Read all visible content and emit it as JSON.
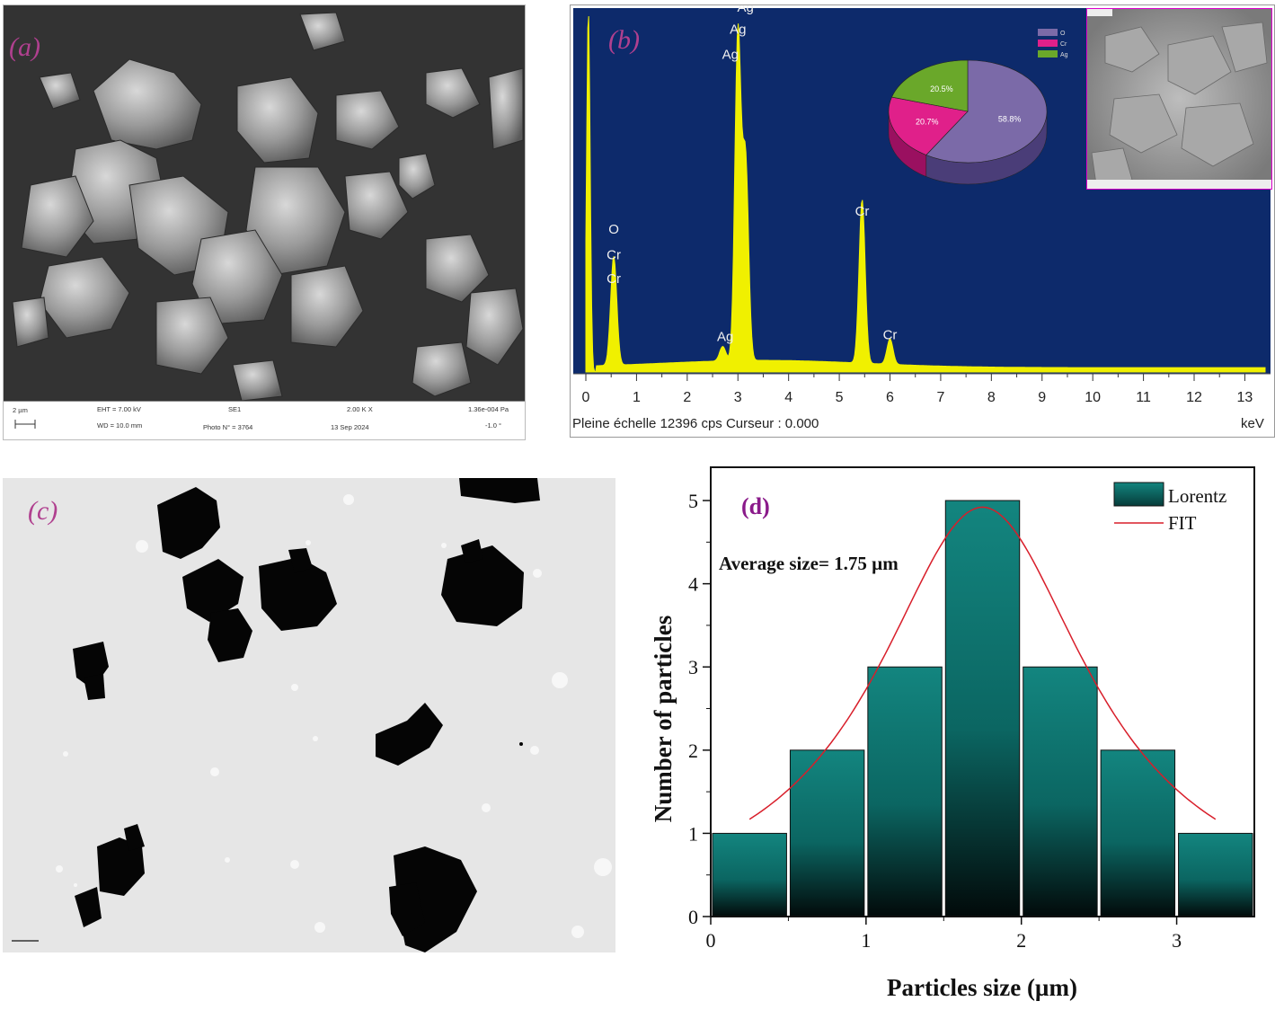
{
  "panel_a": {
    "label": "(a)",
    "info": {
      "scale": "2 µm",
      "eht": "EHT = 7.00 kV",
      "wd": "WD = 10.0 mm",
      "detector": "SE1",
      "photo": "Photo N° = 3764",
      "mag": "2.00 K X",
      "date": "13 Sep 2024",
      "pressure": "1.36e-004 Pa",
      "tilt": "-1.0 °"
    }
  },
  "panel_b": {
    "label": "(b)",
    "footer": "Pleine échelle 12396 cps  Curseur : 0.000",
    "unit": "keV",
    "x_ticks": [
      "0",
      "1",
      "2",
      "3",
      "4",
      "5",
      "6",
      "7",
      "8",
      "9",
      "10",
      "11",
      "12",
      "13"
    ],
    "peak_labels": [
      "Ag",
      "Ag",
      "Ag",
      "O",
      "Cr",
      "Cr",
      "Ag",
      "Cr",
      "Cr"
    ],
    "pie_legend": [
      "O",
      "Cr",
      "Ag"
    ],
    "pie_values": [
      "58.8%",
      "20.7%",
      "20.5%"
    ],
    "colors": {
      "background": "#0d2a6b",
      "spectrum": "#f0f000",
      "O": "#7b6aa8",
      "Cr": "#e0208a",
      "Ag": "#6aa82a"
    }
  },
  "panel_c": {
    "label": "(c)"
  },
  "panel_d": {
    "label": "(d)",
    "annotation": "Average size= 1.75 µm",
    "legend": [
      "Lorentz",
      "FIT"
    ],
    "xlabel": "Particles  size (µm)",
    "ylabel": "Number of particles",
    "colors": {
      "bar": "#0f7c78",
      "fit": "#d81e2a",
      "label": "#8a1a8a"
    }
  },
  "chart_data": [
    {
      "type": "bar",
      "title": "",
      "xlabel": "Particles  size (µm)",
      "ylabel": "Number of particles",
      "bin_edges": [
        0,
        0.5,
        1.0,
        1.5,
        2.0,
        2.5,
        3.0,
        3.5
      ],
      "values": [
        1,
        2,
        3,
        5,
        3,
        2,
        1
      ],
      "series": [
        {
          "name": "Lorentz",
          "values": [
            1,
            2,
            3,
            5,
            3,
            2,
            1
          ]
        }
      ],
      "fit": {
        "name": "FIT",
        "type": "lorentz",
        "center": 1.75,
        "peak": 4.92,
        "x_range": [
          0.25,
          3.25
        ],
        "edge_value": 1.17
      },
      "x_ticks": [
        "0",
        "1",
        "2",
        "3"
      ],
      "y_ticks": [
        "0",
        "1",
        "2",
        "3",
        "4",
        "5"
      ],
      "xlim": [
        0,
        3.5
      ],
      "ylim": [
        0,
        5.4
      ],
      "legend_position": "top-right",
      "annotation": "Average size= 1.75 µm"
    },
    {
      "type": "line",
      "title": "",
      "xlabel": "keV",
      "xlim": [
        0,
        13.4
      ],
      "x_ticks": [
        0,
        1,
        2,
        3,
        4,
        5,
        6,
        7,
        8,
        9,
        10,
        11,
        12,
        13
      ],
      "peaks": [
        {
          "x": 0.05,
          "label": "",
          "height": 1.0
        },
        {
          "x": 0.55,
          "label": "O Cr Cr",
          "height": 0.3
        },
        {
          "x": 2.7,
          "label": "Ag",
          "height": 0.04
        },
        {
          "x": 3.0,
          "label": "Ag",
          "height": 0.9
        },
        {
          "x": 3.15,
          "label": "",
          "height": 0.55
        },
        {
          "x": 5.45,
          "label": "Cr",
          "height": 0.45
        },
        {
          "x": 6.0,
          "label": "Cr",
          "height": 0.07
        }
      ]
    },
    {
      "type": "pie",
      "categories": [
        "O",
        "Cr",
        "Ag"
      ],
      "values": [
        58.8,
        20.7,
        20.5
      ]
    }
  ]
}
